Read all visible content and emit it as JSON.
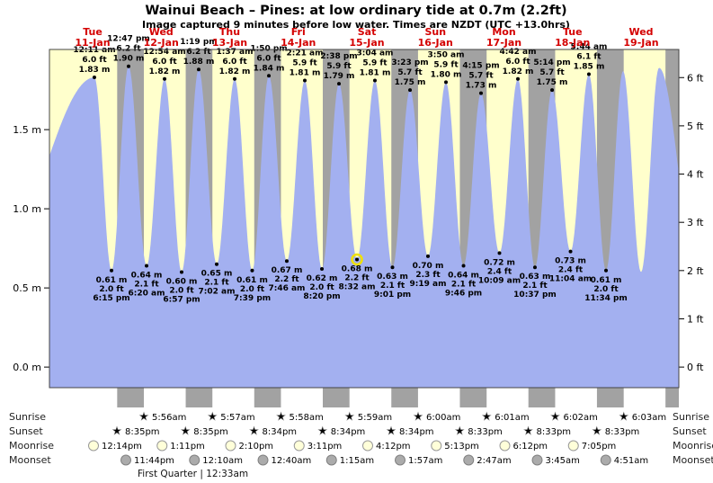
{
  "title": "Wainui Beach – Pines: at low  ordinary tide at 0.7m (2.2ft)",
  "subtitle": "Image captured 9 minutes before low water. Times are NZDT (UTC +13.0hrs)",
  "colors": {
    "day_bg": "#ffffcc",
    "night_band": "#a2a2a2",
    "tide": "#a3b0f0",
    "day_label": "#d40000",
    "marker_ring": "#f0e000",
    "sunrise_star": "#d9b63e",
    "sunset_star": "#cc5a28",
    "moonrise_fill": "#ffffd9",
    "moonrise_stroke": "#999999",
    "moonset_fill": "#ababab",
    "moonset_stroke": "#808080"
  },
  "chart_data": {
    "type": "area",
    "title": "Wainui Beach – Pines tide curve, 11-Jan to 19-Jan",
    "ylabel_left": "meters",
    "ylabel_right": "feet",
    "ylim": [
      -0.13,
      2.01
    ],
    "grid": false,
    "y_axis_m": [
      {
        "v": 0.0,
        "label": "0.0 m"
      },
      {
        "v": 0.5,
        "label": "0.5 m"
      },
      {
        "v": 1.0,
        "label": "1.0 m"
      },
      {
        "v": 1.5,
        "label": "1.5 m"
      }
    ],
    "y_axis_ft": [
      {
        "v": 0,
        "label": "0 ft"
      },
      {
        "v": 1,
        "label": "1 ft"
      },
      {
        "v": 2,
        "label": "2 ft"
      },
      {
        "v": 3,
        "label": "3 ft"
      },
      {
        "v": 4,
        "label": "4 ft"
      },
      {
        "v": 5,
        "label": "5 ft"
      },
      {
        "v": 6,
        "label": "6 ft"
      }
    ],
    "days": [
      {
        "name": "Tue",
        "date": "11-Jan"
      },
      {
        "name": "Wed",
        "date": "12-Jan"
      },
      {
        "name": "Thu",
        "date": "13-Jan"
      },
      {
        "name": "Fri",
        "date": "14-Jan"
      },
      {
        "name": "Sat",
        "date": "15-Jan"
      },
      {
        "name": "Sun",
        "date": "16-Jan"
      },
      {
        "name": "Mon",
        "date": "17-Jan"
      },
      {
        "name": "Tue",
        "date": "18-Jan"
      },
      {
        "name": "Wed",
        "date": "19-Jan"
      }
    ],
    "high_tides": [
      {
        "xf": 0.0714,
        "height_m": 1.83,
        "time": "12:11 am",
        "ft": "6.0 ft",
        "m": "1.83 m"
      },
      {
        "xf": 0.1257,
        "height_m": 1.9,
        "time": "12:47 pm",
        "ft": "6.2 ft",
        "m": "1.90 m"
      },
      {
        "xf": 0.1829,
        "height_m": 1.82,
        "time": "12:54 am",
        "ft": "6.0 ft",
        "m": "1.82 m"
      },
      {
        "xf": 0.2371,
        "height_m": 1.88,
        "time": "1:19 pm",
        "ft": "6.2 ft",
        "m": "1.88 m"
      },
      {
        "xf": 0.2943,
        "height_m": 1.82,
        "time": "1:37 am",
        "ft": "6.0 ft",
        "m": "1.82 m"
      },
      {
        "xf": 0.3486,
        "height_m": 1.84,
        "time": "1:50 pm",
        "ft": "6.0 ft",
        "m": "1.84 m"
      },
      {
        "xf": 0.4057,
        "height_m": 1.81,
        "time": "2:21 am",
        "ft": "5.9 ft",
        "m": "1.81 m"
      },
      {
        "xf": 0.46,
        "height_m": 1.79,
        "time": "2:38 pm",
        "ft": "5.9 ft",
        "m": "1.79 m"
      },
      {
        "xf": 0.5171,
        "height_m": 1.81,
        "time": "3:04 am",
        "ft": "5.9 ft",
        "m": "1.81 m"
      },
      {
        "xf": 0.5729,
        "height_m": 1.75,
        "time": "3:23 pm",
        "ft": "5.7 ft",
        "m": "1.75 m"
      },
      {
        "xf": 0.63,
        "height_m": 1.8,
        "time": "3:50 am",
        "ft": "5.9 ft",
        "m": "1.80 m"
      },
      {
        "xf": 0.6857,
        "height_m": 1.73,
        "time": "4:15 pm",
        "ft": "5.7 ft",
        "m": "1.73 m"
      },
      {
        "xf": 0.7443,
        "height_m": 1.82,
        "time": "4:42 am",
        "ft": "6.0 ft",
        "m": "1.82 m"
      },
      {
        "xf": 0.7986,
        "height_m": 1.75,
        "time": "5:14 pm",
        "ft": "5.7 ft",
        "m": "1.75 m"
      },
      {
        "xf": 0.8571,
        "height_m": 1.85,
        "time": "5:44 am",
        "ft": "6.1 ft",
        "m": "1.85 m"
      }
    ],
    "low_tides": [
      {
        "xf": 0.0986,
        "height_m": 0.61,
        "m": "0.61 m",
        "ft": "2.0 ft",
        "time": "6:15 pm"
      },
      {
        "xf": 0.1543,
        "height_m": 0.64,
        "m": "0.64 m",
        "ft": "2.1 ft",
        "time": "6:20 am"
      },
      {
        "xf": 0.21,
        "height_m": 0.6,
        "m": "0.60 m",
        "ft": "2.0 ft",
        "time": "6:57 pm"
      },
      {
        "xf": 0.2657,
        "height_m": 0.65,
        "m": "0.65 m",
        "ft": "2.1 ft",
        "time": "7:02 am"
      },
      {
        "xf": 0.3221,
        "height_m": 0.61,
        "m": "0.61 m",
        "ft": "2.0 ft",
        "time": "7:39 pm"
      },
      {
        "xf": 0.3771,
        "height_m": 0.67,
        "m": "0.67 m",
        "ft": "2.2 ft",
        "time": "7:46 am"
      },
      {
        "xf": 0.4329,
        "height_m": 0.62,
        "m": "0.62 m",
        "ft": "2.0 ft",
        "time": "8:20 pm"
      },
      {
        "xf": 0.4886,
        "height_m": 0.68,
        "m": "0.68 m",
        "ft": "2.2 ft",
        "time": "8:32 am",
        "current": true
      },
      {
        "xf": 0.545,
        "height_m": 0.63,
        "m": "0.63 m",
        "ft": "2.1 ft",
        "time": "9:01 pm"
      },
      {
        "xf": 0.6014,
        "height_m": 0.7,
        "m": "0.70 m",
        "ft": "2.3 ft",
        "time": "9:19 am"
      },
      {
        "xf": 0.6579,
        "height_m": 0.64,
        "m": "0.64 m",
        "ft": "2.1 ft",
        "time": "9:46 pm"
      },
      {
        "xf": 0.715,
        "height_m": 0.72,
        "m": "0.72 m",
        "ft": "2.4 ft",
        "time": "10:09 am"
      },
      {
        "xf": 0.7714,
        "height_m": 0.63,
        "m": "0.63 m",
        "ft": "2.1 ft",
        "time": "10:37 pm"
      },
      {
        "xf": 0.8279,
        "height_m": 0.73,
        "m": "0.73 m",
        "ft": "2.4 ft",
        "time": "11:04 am"
      },
      {
        "xf": 0.8843,
        "height_m": 0.61,
        "m": "0.61 m",
        "ft": "2.0 ft",
        "time": "11:34 pm"
      }
    ],
    "extra_peaks": [
      {
        "xf": 0.9114,
        "height_m": 1.87
      },
      {
        "xf": 0.9686,
        "height_m": 1.89
      }
    ],
    "extra_troughs": [
      {
        "xf": 0.94,
        "height_m": 0.6
      }
    ],
    "boundary": {
      "pre_trough": {
        "xf": -0.09,
        "height_m": 0.62
      },
      "post_trough": {
        "xf": 1.03,
        "height_m": 0.6
      }
    },
    "night_bands_xf": [
      [
        0.1076,
        0.15
      ],
      [
        0.2165,
        0.2589
      ],
      [
        0.3254,
        0.3678
      ],
      [
        0.4343,
        0.4767
      ],
      [
        0.5432,
        0.5856
      ],
      [
        0.6521,
        0.6946
      ],
      [
        0.761,
        0.8035
      ],
      [
        0.8699,
        0.9124
      ],
      [
        0.9788,
        1.0
      ]
    ]
  },
  "astro": {
    "rows": [
      {
        "label": "Sunrise",
        "icon": "sunrise-star",
        "times": [
          "5:56am",
          "5:57am",
          "5:58am",
          "5:59am",
          "6:00am",
          "6:01am",
          "6:02am",
          "6:03am"
        ]
      },
      {
        "label": "Sunset",
        "icon": "sunset-star",
        "times": [
          "8:35pm",
          "8:35pm",
          "8:34pm",
          "8:34pm",
          "8:34pm",
          "8:33pm",
          "8:33pm",
          "8:33pm"
        ]
      },
      {
        "label": "Moonrise",
        "icon": "moonrise-circle",
        "times": [
          "12:14pm",
          "1:11pm",
          "2:10pm",
          "3:11pm",
          "4:12pm",
          "5:13pm",
          "6:12pm",
          "7:05pm"
        ]
      },
      {
        "label": "Moonset",
        "icon": "moonset-circle",
        "times": [
          "11:44pm",
          "12:10am",
          "12:40am",
          "1:15am",
          "1:57am",
          "2:47am",
          "3:45am",
          "4:51am"
        ]
      }
    ],
    "moon_phase_note": "First Quarter | 12:33am"
  }
}
